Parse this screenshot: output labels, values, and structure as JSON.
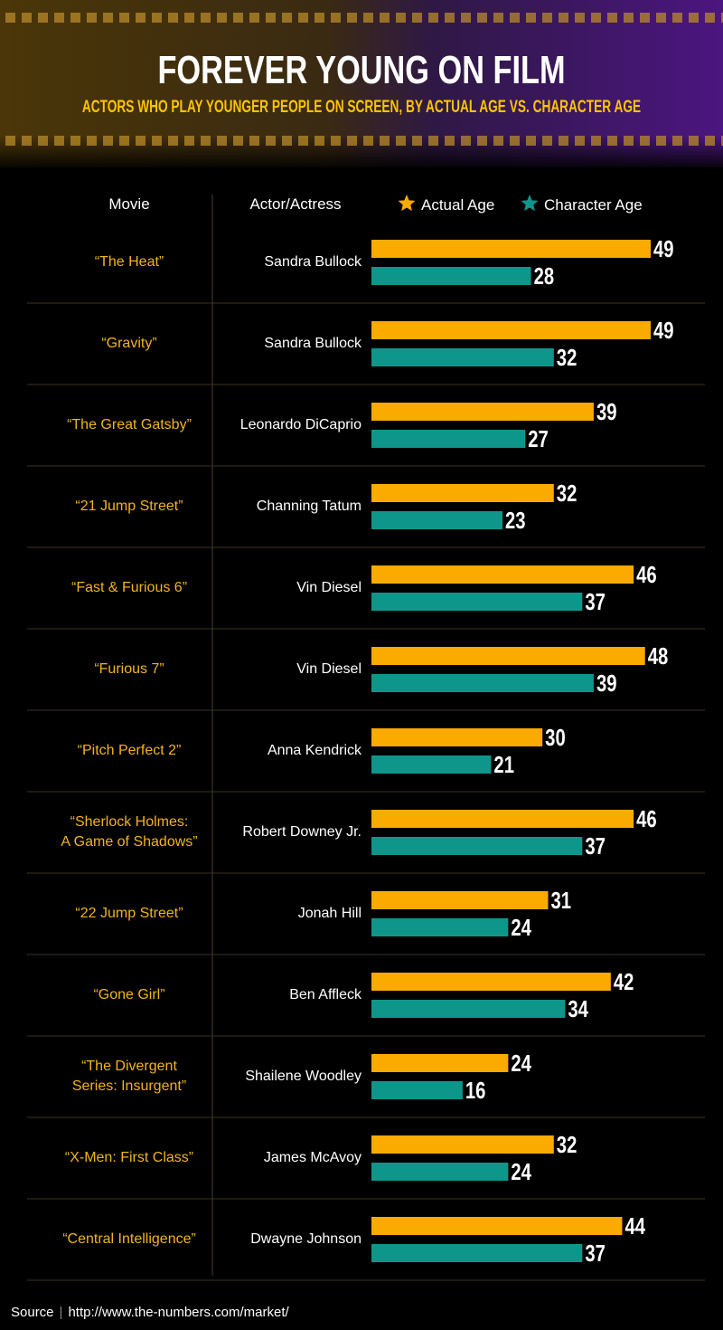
{
  "chart_data": {
    "type": "bar",
    "orientation": "horizontal",
    "title": "FOREVER YOUNG ON FILM",
    "subtitle": "ACTORS WHO PLAY YOUNGER PEOPLE ON SCREEN, BY ACTUAL AGE VS. CHARACTER AGE",
    "column_headers": [
      "Movie",
      "Actor/Actress"
    ],
    "categories": [
      "“The Heat”",
      "“Gravity”",
      "“The Great Gatsby”",
      "“21 Jump Street”",
      "“Fast & Furious 6”",
      "“Furious 7”",
      "“Pitch Perfect 2”",
      "“Sherlock Holmes:\nA Game of Shadows”",
      "“22 Jump Street”",
      "“Gone Girl”",
      "“The Divergent\nSeries: Insurgent”",
      "“X-Men: First Class”",
      "“Central Intelligence”"
    ],
    "actors": [
      "Sandra Bullock",
      "Sandra Bullock",
      "Leonardo DiCaprio",
      "Channing Tatum",
      "Vin Diesel",
      "Vin Diesel",
      "Anna Kendrick",
      "Robert Downey Jr.",
      "Jonah Hill",
      "Ben Affleck",
      "Shailene Woodley",
      "James McAvoy",
      "Dwayne Johnson"
    ],
    "series": [
      {
        "name": "Actual Age",
        "color": "#fbab00",
        "values": [
          49,
          49,
          39,
          32,
          46,
          48,
          30,
          46,
          31,
          42,
          24,
          32,
          44
        ]
      },
      {
        "name": "Character Age",
        "color": "#0f968a",
        "values": [
          28,
          32,
          27,
          23,
          37,
          39,
          21,
          37,
          24,
          34,
          16,
          24,
          37
        ]
      }
    ],
    "source_label": "Source",
    "source": "http://www.the-numbers.com/market/"
  }
}
